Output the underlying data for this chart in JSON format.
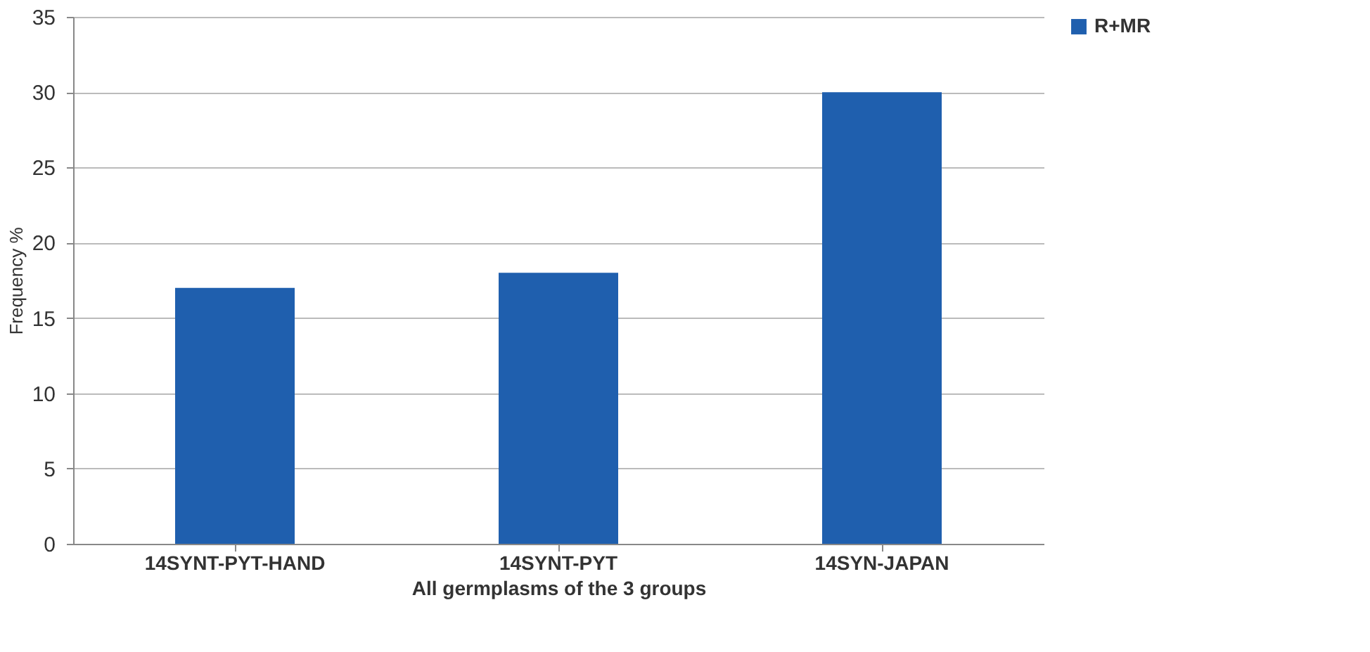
{
  "chart_data": {
    "type": "bar",
    "xlabel": "All germplasms of the 3 groups",
    "ylabel": "Frequency %",
    "categories": [
      "14SYNT-PYT-HAND",
      "14SYNT-PYT",
      "14SYN-JAPAN"
    ],
    "series": [
      {
        "name": "R+MR",
        "color": "#1f5fae",
        "values": [
          17,
          18,
          30
        ]
      }
    ],
    "ylim": [
      0,
      35
    ],
    "yticks": [
      0,
      5,
      10,
      15,
      20,
      25,
      30,
      35
    ],
    "grid": "y",
    "legend": "right"
  }
}
